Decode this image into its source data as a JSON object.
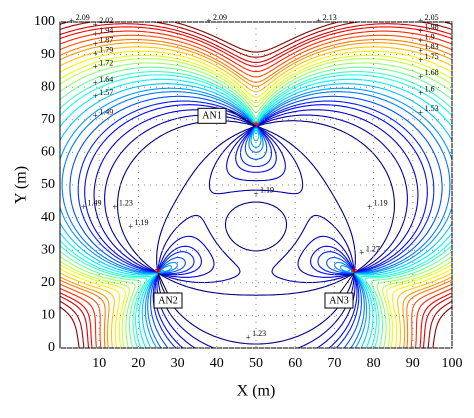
{
  "chart_data": {
    "type": "contour",
    "xlabel": "X (m)",
    "ylabel": "Y (m)",
    "xlim": [
      0,
      100
    ],
    "ylim": [
      0,
      100
    ],
    "xticks": [
      10,
      20,
      30,
      40,
      50,
      60,
      70,
      80,
      90,
      100
    ],
    "yticks": [
      0,
      10,
      20,
      30,
      40,
      50,
      60,
      70,
      80,
      90,
      100
    ],
    "grid": true,
    "colormap": "jet",
    "levels": [
      1.19,
      1.23,
      1.27,
      1.31,
      1.34,
      1.38,
      1.42,
      1.45,
      1.49,
      1.53,
      1.57,
      1.6,
      1.64,
      1.68,
      1.72,
      1.75,
      1.79,
      1.83,
      1.87,
      1.9,
      1.94,
      1.98,
      2.02,
      2.05,
      2.09,
      2.13
    ],
    "anchors": [
      {
        "name": "AN1",
        "x": 50,
        "y": 68
      },
      {
        "name": "AN2",
        "x": 25,
        "y": 23
      },
      {
        "name": "AN3",
        "x": 75,
        "y": 23
      }
    ],
    "contour_labels": [
      {
        "value": 2.09,
        "x": 3,
        "y": 100
      },
      {
        "value": 2.02,
        "x": 9,
        "y": 99
      },
      {
        "value": 1.94,
        "x": 9,
        "y": 96
      },
      {
        "value": 1.87,
        "x": 9,
        "y": 93
      },
      {
        "value": 1.79,
        "x": 9,
        "y": 90
      },
      {
        "value": 1.72,
        "x": 9,
        "y": 86
      },
      {
        "value": 1.64,
        "x": 9,
        "y": 81
      },
      {
        "value": 1.57,
        "x": 9,
        "y": 77
      },
      {
        "value": 1.49,
        "x": 9,
        "y": 71
      },
      {
        "value": 2.09,
        "x": 38,
        "y": 100
      },
      {
        "value": 2.13,
        "x": 66,
        "y": 100
      },
      {
        "value": 2.05,
        "x": 92,
        "y": 100
      },
      {
        "value": 1.98,
        "x": 92,
        "y": 97
      },
      {
        "value": 1.9,
        "x": 92,
        "y": 94
      },
      {
        "value": 1.83,
        "x": 92,
        "y": 91
      },
      {
        "value": 1.75,
        "x": 92,
        "y": 88
      },
      {
        "value": 1.68,
        "x": 92,
        "y": 83
      },
      {
        "value": 1.6,
        "x": 92,
        "y": 78
      },
      {
        "value": 1.53,
        "x": 92,
        "y": 72
      },
      {
        "value": 1.19,
        "x": 50,
        "y": 47
      },
      {
        "value": 1.23,
        "x": 14,
        "y": 43
      },
      {
        "value": 1.19,
        "x": 18,
        "y": 37
      },
      {
        "value": 1.19,
        "x": 79,
        "y": 43
      },
      {
        "value": 1.27,
        "x": 77,
        "y": 29
      },
      {
        "value": 1.23,
        "x": 48,
        "y": 3
      },
      {
        "value": 1.49,
        "x": 6,
        "y": 43
      }
    ]
  }
}
